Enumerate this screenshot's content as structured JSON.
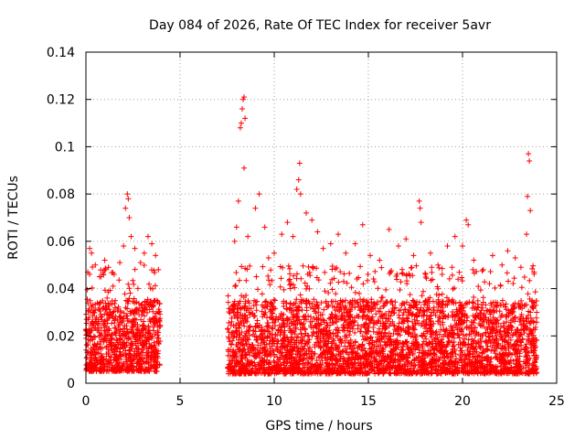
{
  "chart_data": {
    "type": "scatter",
    "title": "Day 084 of 2026, Rate Of TEC Index for receiver 5avr",
    "xlabel": "GPS time / hours",
    "ylabel": "ROTI / TECUs",
    "xlim": [
      0,
      25
    ],
    "ylim": [
      0,
      0.14
    ],
    "xticks": [
      0,
      5,
      10,
      15,
      20,
      25
    ],
    "xtick_labels": [
      "0",
      "5",
      "10",
      "15",
      "20",
      "25"
    ],
    "yticks": [
      0,
      0.02,
      0.04,
      0.06,
      0.08,
      0.1,
      0.12,
      0.14
    ],
    "ytick_labels": [
      "0",
      "0.02",
      "0.04",
      "0.06",
      "0.08",
      "0.1",
      "0.12",
      "0.14"
    ],
    "grid": true,
    "marker": "+",
    "color": "#ff0000",
    "series": [
      {
        "name": "ROTI",
        "segments": [
          {
            "t_start": 0.0,
            "t_end": 3.95,
            "typical_min": 0.005,
            "typical_max": 0.035,
            "count": 900
          },
          {
            "t_start": 7.5,
            "t_end": 23.95,
            "typical_min": 0.004,
            "typical_max": 0.035,
            "count": 3600
          }
        ],
        "points": [
          [
            0.1,
            0.047
          ],
          [
            0.2,
            0.057
          ],
          [
            0.3,
            0.055
          ],
          [
            0.5,
            0.05
          ],
          [
            0.8,
            0.045
          ],
          [
            1.0,
            0.052
          ],
          [
            1.2,
            0.049
          ],
          [
            1.5,
            0.046
          ],
          [
            1.8,
            0.051
          ],
          [
            2.0,
            0.058
          ],
          [
            2.1,
            0.074
          ],
          [
            2.2,
            0.08
          ],
          [
            2.25,
            0.078
          ],
          [
            2.3,
            0.07
          ],
          [
            2.4,
            0.062
          ],
          [
            2.6,
            0.057
          ],
          [
            2.9,
            0.051
          ],
          [
            3.1,
            0.055
          ],
          [
            3.3,
            0.062
          ],
          [
            3.5,
            0.059
          ],
          [
            3.7,
            0.054
          ],
          [
            3.85,
            0.048
          ],
          [
            7.9,
            0.06
          ],
          [
            8.0,
            0.066
          ],
          [
            8.1,
            0.077
          ],
          [
            8.2,
            0.108
          ],
          [
            8.25,
            0.11
          ],
          [
            8.3,
            0.116
          ],
          [
            8.35,
            0.12
          ],
          [
            8.4,
            0.121
          ],
          [
            8.45,
            0.112
          ],
          [
            8.4,
            0.091
          ],
          [
            8.6,
            0.062
          ],
          [
            9.0,
            0.074
          ],
          [
            9.2,
            0.08
          ],
          [
            9.5,
            0.066
          ],
          [
            9.7,
            0.053
          ],
          [
            10.0,
            0.055
          ],
          [
            10.4,
            0.063
          ],
          [
            10.7,
            0.068
          ],
          [
            11.0,
            0.062
          ],
          [
            11.2,
            0.082
          ],
          [
            11.3,
            0.086
          ],
          [
            11.35,
            0.093
          ],
          [
            11.4,
            0.08
          ],
          [
            11.7,
            0.072
          ],
          [
            12.0,
            0.069
          ],
          [
            12.3,
            0.064
          ],
          [
            12.6,
            0.057
          ],
          [
            13.0,
            0.059
          ],
          [
            13.4,
            0.063
          ],
          [
            13.8,
            0.055
          ],
          [
            14.3,
            0.059
          ],
          [
            14.7,
            0.067
          ],
          [
            15.1,
            0.054
          ],
          [
            15.6,
            0.052
          ],
          [
            16.1,
            0.065
          ],
          [
            16.6,
            0.058
          ],
          [
            17.0,
            0.061
          ],
          [
            17.4,
            0.054
          ],
          [
            17.7,
            0.077
          ],
          [
            17.75,
            0.074
          ],
          [
            17.8,
            0.068
          ],
          [
            18.3,
            0.055
          ],
          [
            18.7,
            0.05
          ],
          [
            19.2,
            0.058
          ],
          [
            19.6,
            0.062
          ],
          [
            20.0,
            0.058
          ],
          [
            20.2,
            0.069
          ],
          [
            20.3,
            0.067
          ],
          [
            20.6,
            0.052
          ],
          [
            21.1,
            0.048
          ],
          [
            21.6,
            0.054
          ],
          [
            22.1,
            0.05
          ],
          [
            22.4,
            0.056
          ],
          [
            22.8,
            0.053
          ],
          [
            23.1,
            0.049
          ],
          [
            23.4,
            0.063
          ],
          [
            23.45,
            0.079
          ],
          [
            23.5,
            0.097
          ],
          [
            23.55,
            0.094
          ],
          [
            23.6,
            0.073
          ],
          [
            23.8,
            0.047
          ]
        ]
      }
    ]
  }
}
